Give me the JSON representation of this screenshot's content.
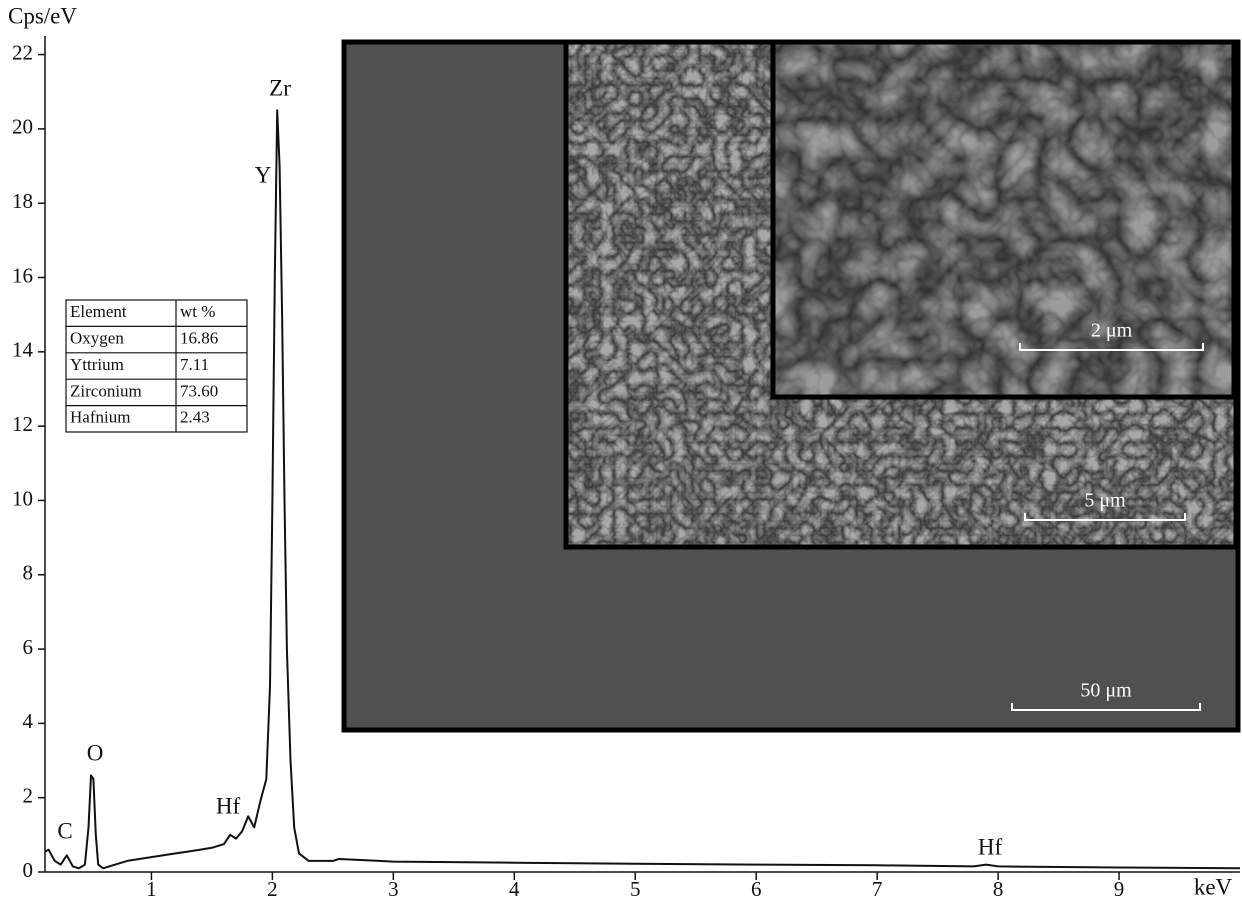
{
  "chart_data": {
    "type": "line",
    "y_label": "Cps/eV",
    "x_label": "keV",
    "color": "#111111",
    "xlim": [
      0.12,
      10
    ],
    "xticks": [
      1,
      2,
      3,
      4,
      5,
      6,
      7,
      8,
      9
    ],
    "ylim": [
      0,
      22.5
    ],
    "yticks": [
      0,
      2,
      4,
      6,
      8,
      10,
      12,
      14,
      16,
      18,
      20,
      22
    ],
    "grid": false,
    "x": [
      0.12,
      0.15,
      0.2,
      0.25,
      0.3,
      0.35,
      0.4,
      0.45,
      0.48,
      0.5,
      0.52,
      0.54,
      0.56,
      0.6,
      0.7,
      0.8,
      0.9,
      1.0,
      1.1,
      1.2,
      1.3,
      1.4,
      1.5,
      1.6,
      1.65,
      1.7,
      1.75,
      1.8,
      1.85,
      1.9,
      1.95,
      1.98,
      2.0,
      2.02,
      2.04,
      2.06,
      2.08,
      2.1,
      2.12,
      2.15,
      2.18,
      2.22,
      2.3,
      2.5,
      2.55,
      3.0,
      4.0,
      5.0,
      6.0,
      7.0,
      7.8,
      7.9,
      8.0,
      9.0,
      10.0
    ],
    "values": [
      0.55,
      0.6,
      0.3,
      0.2,
      0.45,
      0.15,
      0.1,
      0.2,
      1.2,
      2.6,
      2.5,
      1.0,
      0.2,
      0.1,
      0.2,
      0.3,
      0.35,
      0.4,
      0.45,
      0.5,
      0.55,
      0.6,
      0.65,
      0.75,
      1.0,
      0.9,
      1.1,
      1.5,
      1.2,
      1.9,
      2.5,
      5,
      10,
      16,
      20.5,
      19,
      15,
      10,
      6,
      3,
      1.2,
      0.5,
      0.3,
      0.3,
      0.35,
      0.28,
      0.25,
      0.22,
      0.2,
      0.18,
      0.15,
      0.2,
      0.15,
      0.12,
      0.1
    ],
    "annotations": [
      "C",
      "O",
      "Hf",
      "Zr",
      "Y",
      "Hf"
    ],
    "table": {
      "header": [
        "Element",
        "wt %"
      ],
      "rows": [
        [
          "Oxygen",
          "16.86"
        ],
        [
          "Yttrium",
          "7.11"
        ],
        [
          "Zirconium",
          "73.60"
        ],
        [
          "Hafnium",
          "2.43"
        ]
      ]
    },
    "images": [
      {
        "scale_bar": "50 μm"
      },
      {
        "scale_bar": "5 μm"
      },
      {
        "scale_bar": "2 μm"
      }
    ]
  }
}
